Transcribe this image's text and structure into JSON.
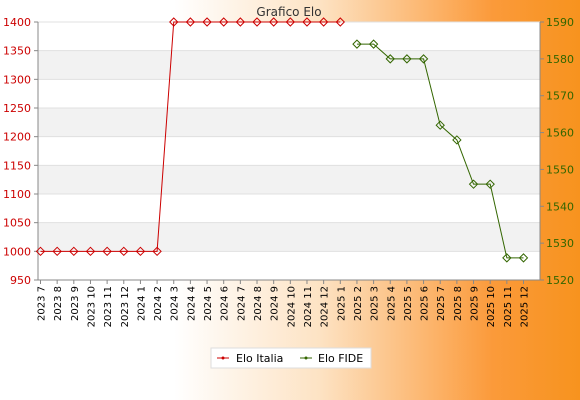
{
  "chart_data": {
    "type": "line",
    "title": "Grafico Elo",
    "categories": [
      "2023 7",
      "2023 8",
      "2023 9",
      "2023 10",
      "2023 11",
      "2023 12",
      "2024 1",
      "2024 2",
      "2024 3",
      "2024 4",
      "2024 5",
      "2024 6",
      "2024 7",
      "2024 8",
      "2024 9",
      "2024 10",
      "2024 11",
      "2024 12",
      "2025 1",
      "2025 2",
      "2025 3",
      "2025 4",
      "2025 5",
      "2025 6",
      "2025 7",
      "2025 8",
      "2025 9",
      "2025 10",
      "2025 11",
      "2025 12"
    ],
    "left_axis": {
      "min": 950,
      "max": 1400,
      "ticks": [
        950,
        1000,
        1050,
        1100,
        1150,
        1200,
        1250,
        1300,
        1350,
        1400
      ],
      "color": "#cc0000"
    },
    "right_axis": {
      "min": 1520,
      "max": 1590,
      "ticks": [
        1520,
        1530,
        1540,
        1550,
        1560,
        1570,
        1580,
        1590
      ],
      "color": "#336600"
    },
    "series": [
      {
        "name": "Elo Italia",
        "axis": "left",
        "color": "#cc0000",
        "values": [
          1000,
          1000,
          1000,
          1000,
          1000,
          1000,
          1000,
          1000,
          1400,
          1400,
          1400,
          1400,
          1400,
          1400,
          1400,
          1400,
          1400,
          1400,
          1400,
          null,
          null,
          null,
          null,
          null,
          null,
          null,
          null,
          null,
          null,
          null
        ]
      },
      {
        "name": "Elo FIDE",
        "axis": "right",
        "color": "#336600",
        "values": [
          null,
          null,
          null,
          null,
          null,
          null,
          null,
          null,
          null,
          null,
          null,
          null,
          null,
          null,
          null,
          null,
          null,
          null,
          null,
          1584,
          1584,
          1580,
          1580,
          1580,
          1562,
          1558,
          1546,
          1546,
          1526,
          1526
        ]
      }
    ],
    "legend_position": "bottom",
    "grid": true
  }
}
